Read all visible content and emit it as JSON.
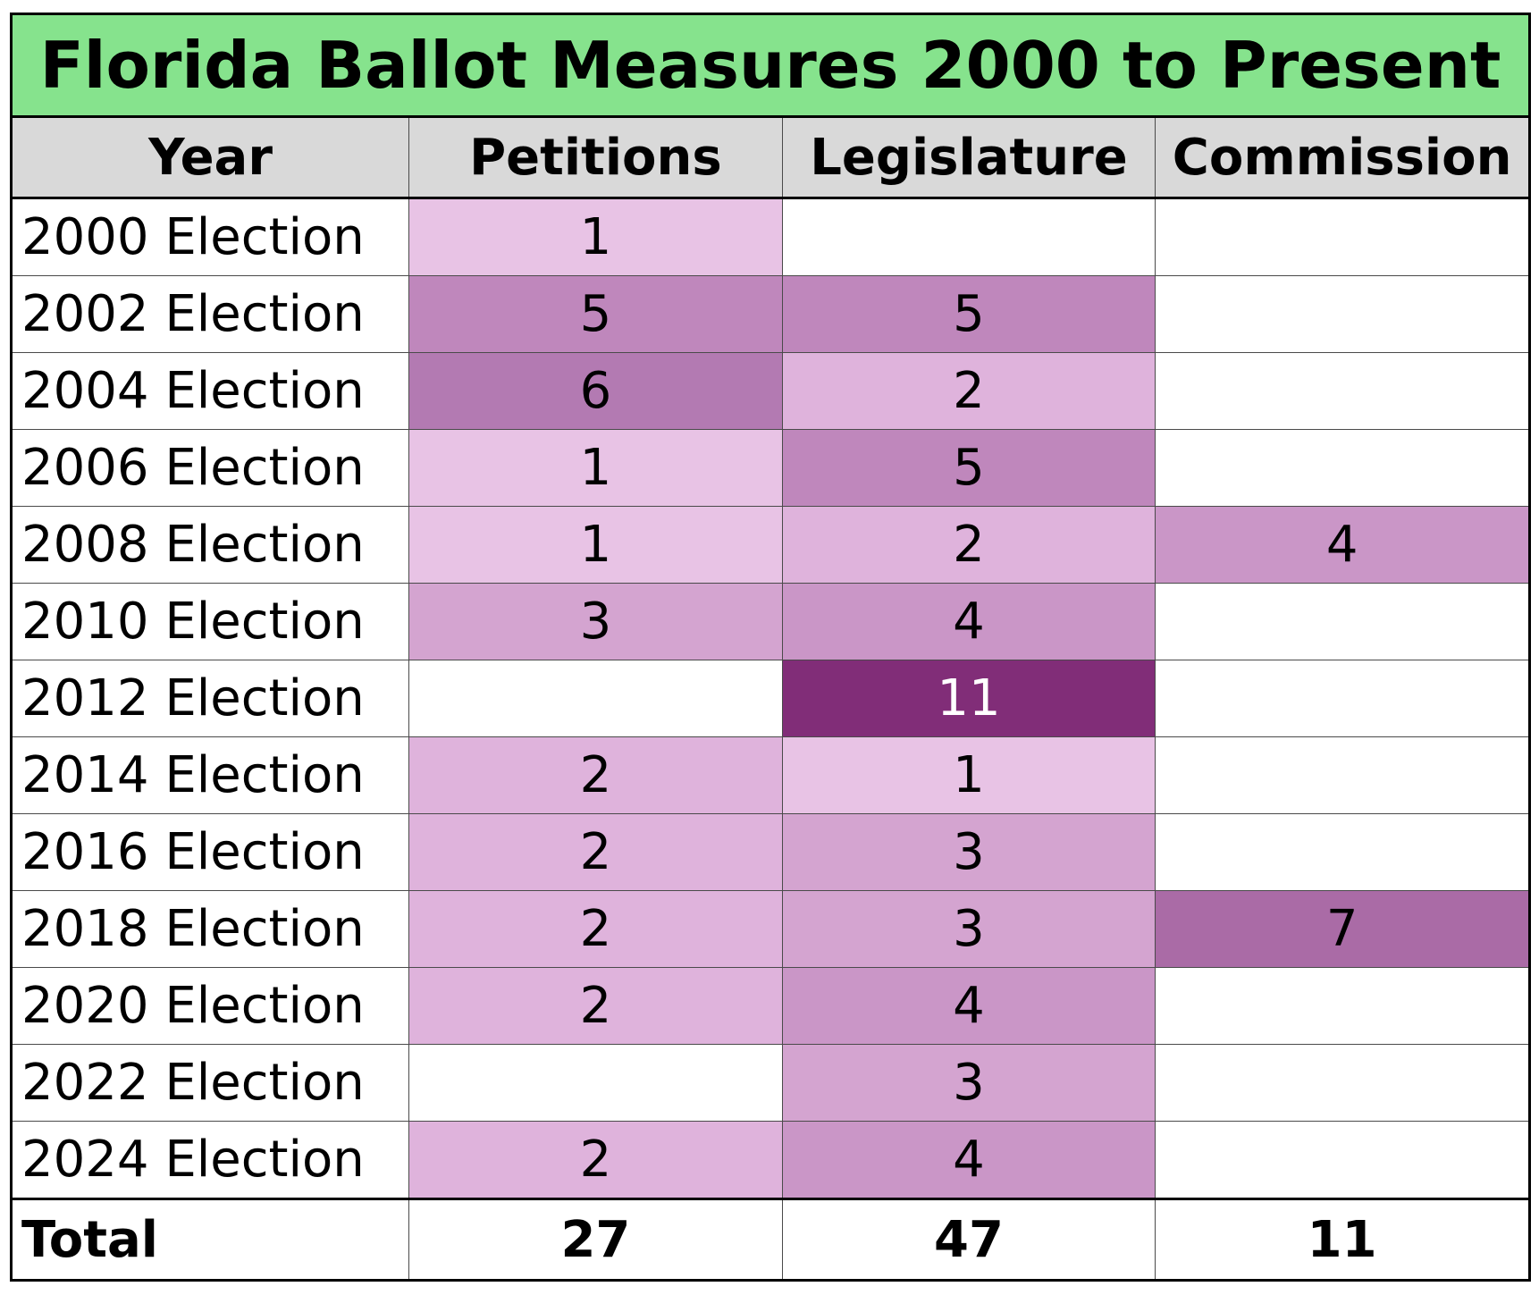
{
  "chart_data": {
    "type": "table",
    "title": "Florida Ballot Measures 2000 to Present",
    "columns": [
      "Year",
      "Petitions",
      "Legislature",
      "Commission"
    ],
    "rows": [
      {
        "year": "2000 Election",
        "values": [
          1,
          null,
          null
        ]
      },
      {
        "year": "2002 Election",
        "values": [
          5,
          5,
          null
        ]
      },
      {
        "year": "2004 Election",
        "values": [
          6,
          2,
          null
        ]
      },
      {
        "year": "2006 Election",
        "values": [
          1,
          5,
          null
        ]
      },
      {
        "year": "2008 Election",
        "values": [
          1,
          2,
          4
        ]
      },
      {
        "year": "2010 Election",
        "values": [
          3,
          4,
          null
        ]
      },
      {
        "year": "2012 Election",
        "values": [
          null,
          11,
          null
        ]
      },
      {
        "year": "2014 Election",
        "values": [
          2,
          1,
          null
        ]
      },
      {
        "year": "2016 Election",
        "values": [
          2,
          3,
          null
        ]
      },
      {
        "year": "2018 Election",
        "values": [
          2,
          3,
          7
        ]
      },
      {
        "year": "2020 Election",
        "values": [
          2,
          4,
          null
        ]
      },
      {
        "year": "2022 Election",
        "values": [
          null,
          3,
          null
        ]
      },
      {
        "year": "2024 Election",
        "values": [
          2,
          4,
          null
        ]
      }
    ],
    "total": {
      "label": "Total",
      "values": [
        27,
        47,
        11
      ]
    }
  },
  "colors": {
    "title_background": "#86e38d",
    "header_background": "#d9d9d9",
    "heat_scale": {
      "1": "#e8c3e5",
      "2": "#dfb3dc",
      "3": "#d4a4d0",
      "4": "#ca96c7",
      "5": "#bf87bc",
      "6": "#b37ab2",
      "7": "#aa6ba6",
      "11": "#812d78"
    },
    "light_text": "#ffffff",
    "dark_text": "#000000"
  }
}
